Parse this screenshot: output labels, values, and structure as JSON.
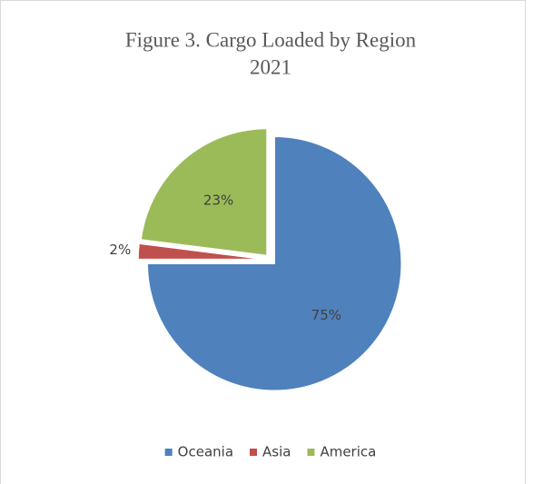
{
  "chart_data": {
    "type": "pie",
    "title": "Figure 3. Cargo Loaded by Region",
    "subtitle": "2021",
    "categories": [
      "Oceania",
      "Asia",
      "America"
    ],
    "values": [
      75,
      2,
      23
    ],
    "value_labels": [
      "75%",
      "2%",
      "23%"
    ],
    "colors": [
      "#4f81bd",
      "#c0504d",
      "#9bbb59"
    ],
    "legend": "bottom"
  }
}
